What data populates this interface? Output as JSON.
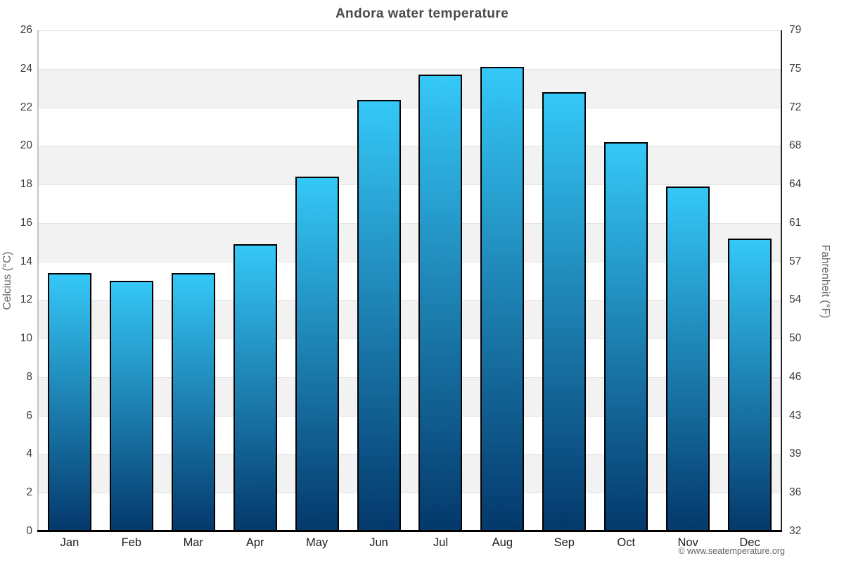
{
  "title": "Andora water temperature",
  "watermark": "© www.seatemperature.org",
  "chart_data": {
    "type": "bar",
    "title": "Andora water temperature",
    "categories": [
      "Jan",
      "Feb",
      "Mar",
      "Apr",
      "May",
      "Jun",
      "Jul",
      "Aug",
      "Sep",
      "Oct",
      "Nov",
      "Dec"
    ],
    "values": [
      13.4,
      13.0,
      13.4,
      14.9,
      18.4,
      22.4,
      23.7,
      24.1,
      22.8,
      20.2,
      17.9,
      15.2
    ],
    "unit": "°C",
    "ylabel": "Celcius (°C)",
    "y2label": "Fahrenheit (°F)",
    "ylim": [
      0,
      26
    ],
    "yticks_celsius": [
      26,
      24,
      22,
      20,
      18,
      16,
      14,
      12,
      10,
      8,
      6,
      4,
      2,
      0
    ],
    "yticks_fahrenheit": [
      79,
      75,
      72,
      68,
      64,
      61,
      57,
      54,
      50,
      46,
      43,
      39,
      36,
      32
    ],
    "grid": "alternating horizontal bands, white and light gray",
    "legend": "none",
    "colors": {
      "bar_gradient_top": "#35c8f7",
      "bar_gradient_bottom": "#04386b",
      "bar_border": "#000000",
      "band_gray": "#f2f2f2",
      "gridline": "#e4e4e4",
      "title_text": "#4a4a4a",
      "tick_text": "#3d3d3d",
      "axis_title_text": "#666666"
    }
  }
}
